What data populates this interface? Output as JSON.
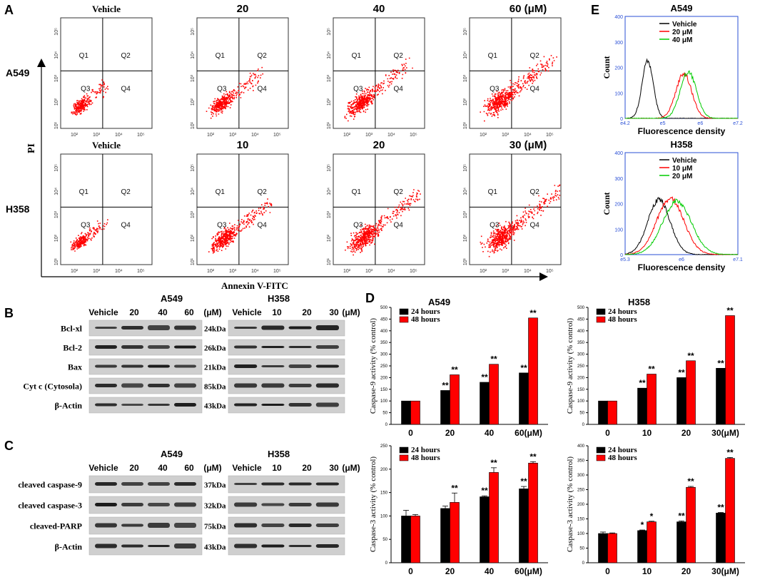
{
  "panels": {
    "A": {
      "letter": "A",
      "y_axis_label": "PI",
      "x_axis_label": "Annexin V-FITC",
      "rows": [
        {
          "cell_line": "A549",
          "conditions": [
            "Vehicle",
            "20",
            "40",
            "60 (μM)"
          ],
          "spread": [
            0.05,
            0.35,
            0.55,
            0.7
          ]
        },
        {
          "cell_line": "H358",
          "conditions": [
            "Vehicle",
            "10",
            "20",
            "30 (μM)"
          ],
          "spread": [
            0.05,
            0.5,
            0.75,
            0.8
          ]
        }
      ],
      "quadrants": [
        "Q1",
        "Q2",
        "Q3",
        "Q4"
      ],
      "x_ticks": [
        "10²",
        "10³",
        "10⁴",
        "10⁵"
      ],
      "y_ticks": [
        "10⁵",
        "10⁴",
        "10³",
        "10²",
        "10¹"
      ]
    },
    "B": {
      "letter": "B",
      "groups": [
        {
          "cell_line": "A549",
          "lanes": [
            "Vehicle",
            "20",
            "40",
            "60",
            "(μM)"
          ]
        },
        {
          "cell_line": "H358",
          "lanes": [
            "Vehicle",
            "10",
            "20",
            "30",
            "(μM)"
          ]
        }
      ],
      "proteins": [
        {
          "name": "Bcl-xl",
          "size": "24kDa"
        },
        {
          "name": "Bcl-2",
          "size": "26kDa"
        },
        {
          "name": "Bax",
          "size": "21kDa"
        },
        {
          "name": "Cyt c (Cytosola)",
          "size": "85kDa"
        },
        {
          "name": "β-Actin",
          "size": "43kDa"
        }
      ]
    },
    "C": {
      "letter": "C",
      "groups": [
        {
          "cell_line": "A549",
          "lanes": [
            "Vehicle",
            "20",
            "40",
            "60",
            "(μM)"
          ]
        },
        {
          "cell_line": "H358",
          "lanes": [
            "Vehicle",
            "10",
            "20",
            "30",
            "(μM)"
          ]
        }
      ],
      "proteins": [
        {
          "name": "cleaved caspase-9",
          "size": "37kDa"
        },
        {
          "name": "cleaved caspase-3",
          "size": "32kDa"
        },
        {
          "name": "cleaved-PARP",
          "size": "75kDa"
        },
        {
          "name": "β-Actin",
          "size": "43kDa"
        }
      ]
    },
    "D": {
      "letter": "D",
      "titles": [
        "A549",
        "H358"
      ]
    },
    "E": {
      "letter": "E",
      "y_ticks": [
        "0",
        "100",
        "200",
        "300",
        "400"
      ],
      "xlabel": "Fluorescence density",
      "ylabel": "Count"
    }
  },
  "chart_data": [
    {
      "type": "bar",
      "title": "A549",
      "ylabel": "Caspase-9 activity (% control)",
      "categories": [
        "0",
        "20",
        "40",
        "60(μM)"
      ],
      "series": [
        {
          "name": "24 hours",
          "color": "#000000",
          "values": [
            100,
            145,
            180,
            220
          ],
          "errors": [
            0,
            0,
            0,
            0
          ],
          "marks": [
            "",
            "**",
            "**",
            "**"
          ]
        },
        {
          "name": "48 hours",
          "color": "#ff0000",
          "values": [
            100,
            212,
            257,
            455
          ],
          "errors": [
            0,
            0,
            0,
            0
          ],
          "marks": [
            "",
            "**",
            "**",
            "**"
          ]
        }
      ],
      "ylim": [
        0,
        500
      ],
      "yticks": [
        "0",
        "50",
        "100",
        "150",
        "200",
        "250",
        "300",
        "350",
        "400",
        "450",
        "500"
      ]
    },
    {
      "type": "bar",
      "title": "H358",
      "ylabel": "Caspase-9 activity (% control)",
      "categories": [
        "0",
        "10",
        "20",
        "30(μM)"
      ],
      "series": [
        {
          "name": "24 hours",
          "color": "#000000",
          "values": [
            100,
            155,
            200,
            240
          ],
          "errors": [
            0,
            0,
            0,
            0
          ],
          "marks": [
            "",
            "**",
            "**",
            "**"
          ]
        },
        {
          "name": "48 hours",
          "color": "#ff0000",
          "values": [
            100,
            215,
            272,
            465
          ],
          "errors": [
            0,
            0,
            0,
            0
          ],
          "marks": [
            "",
            "**",
            "**",
            "**"
          ]
        }
      ],
      "ylim": [
        0,
        500
      ],
      "yticks": [
        "0",
        "50",
        "100",
        "150",
        "200",
        "250",
        "300",
        "350",
        "400",
        "450",
        "500"
      ]
    },
    {
      "type": "bar",
      "title": "",
      "ylabel": "Caspase-3 activity (% control)",
      "categories": [
        "0",
        "20",
        "40",
        "60(μM)"
      ],
      "series": [
        {
          "name": "24 hours",
          "color": "#000000",
          "values": [
            100,
            116,
            141,
            158
          ],
          "errors": [
            12,
            5,
            2,
            5
          ],
          "marks": [
            "",
            "",
            "**",
            "**"
          ]
        },
        {
          "name": "48 hours",
          "color": "#ff0000",
          "values": [
            100,
            129,
            193,
            213
          ],
          "errors": [
            3,
            20,
            10,
            3
          ],
          "marks": [
            "",
            "**",
            "**",
            "**"
          ]
        }
      ],
      "ylim": [
        0,
        250
      ],
      "yticks": [
        "0",
        "50",
        "100",
        "150",
        "200",
        "250"
      ]
    },
    {
      "type": "bar",
      "title": "",
      "ylabel": "Caspase-3 activity (% control)",
      "categories": [
        "0",
        "10",
        "20",
        "30(μM)"
      ],
      "series": [
        {
          "name": "24 hours",
          "color": "#000000",
          "values": [
            100,
            110,
            140,
            170
          ],
          "errors": [
            5,
            2,
            3,
            2
          ],
          "marks": [
            "",
            "*",
            "**",
            "**"
          ]
        },
        {
          "name": "48 hours",
          "color": "#ff0000",
          "values": [
            100,
            140,
            258,
            357
          ],
          "errors": [
            2,
            2,
            3,
            3
          ],
          "marks": [
            "",
            "*",
            "**",
            "**"
          ]
        }
      ],
      "ylim": [
        0,
        400
      ],
      "yticks": [
        "0",
        "50",
        "100",
        "150",
        "200",
        "250",
        "300",
        "350",
        "400"
      ]
    },
    {
      "type": "line",
      "title": "A549",
      "xlabel": "Fluorescence density",
      "ylabel": "Count",
      "xlim": [
        "e^4.2",
        "e^7.2"
      ],
      "ylim": [
        0,
        400
      ],
      "x_ticks": [
        "e4.2",
        "e5",
        "e6",
        "e7.2"
      ],
      "series": [
        {
          "name": "Vehicle",
          "color": "#000000",
          "peak_x": 0.2,
          "peak_y": 225,
          "width": 0.07
        },
        {
          "name": "20 μM",
          "color": "#ff0000",
          "peak_x": 0.52,
          "peak_y": 175,
          "width": 0.1
        },
        {
          "name": "40 μM",
          "color": "#00cc00",
          "peak_x": 0.56,
          "peak_y": 185,
          "width": 0.1
        }
      ]
    },
    {
      "type": "line",
      "title": "H358",
      "xlabel": "Fluorescence density",
      "ylabel": "Count",
      "xlim": [
        "e^5.3",
        "e^7.1"
      ],
      "ylim": [
        0,
        400
      ],
      "x_ticks": [
        "e5.3",
        "e6",
        "e7.1"
      ],
      "series": [
        {
          "name": "Vehicle",
          "color": "#000000",
          "peak_x": 0.3,
          "peak_y": 215,
          "width": 0.14
        },
        {
          "name": "10 μM",
          "color": "#ff0000",
          "peak_x": 0.4,
          "peak_y": 220,
          "width": 0.17
        },
        {
          "name": "20 μM",
          "color": "#00cc00",
          "peak_x": 0.46,
          "peak_y": 210,
          "width": 0.18
        }
      ]
    }
  ]
}
